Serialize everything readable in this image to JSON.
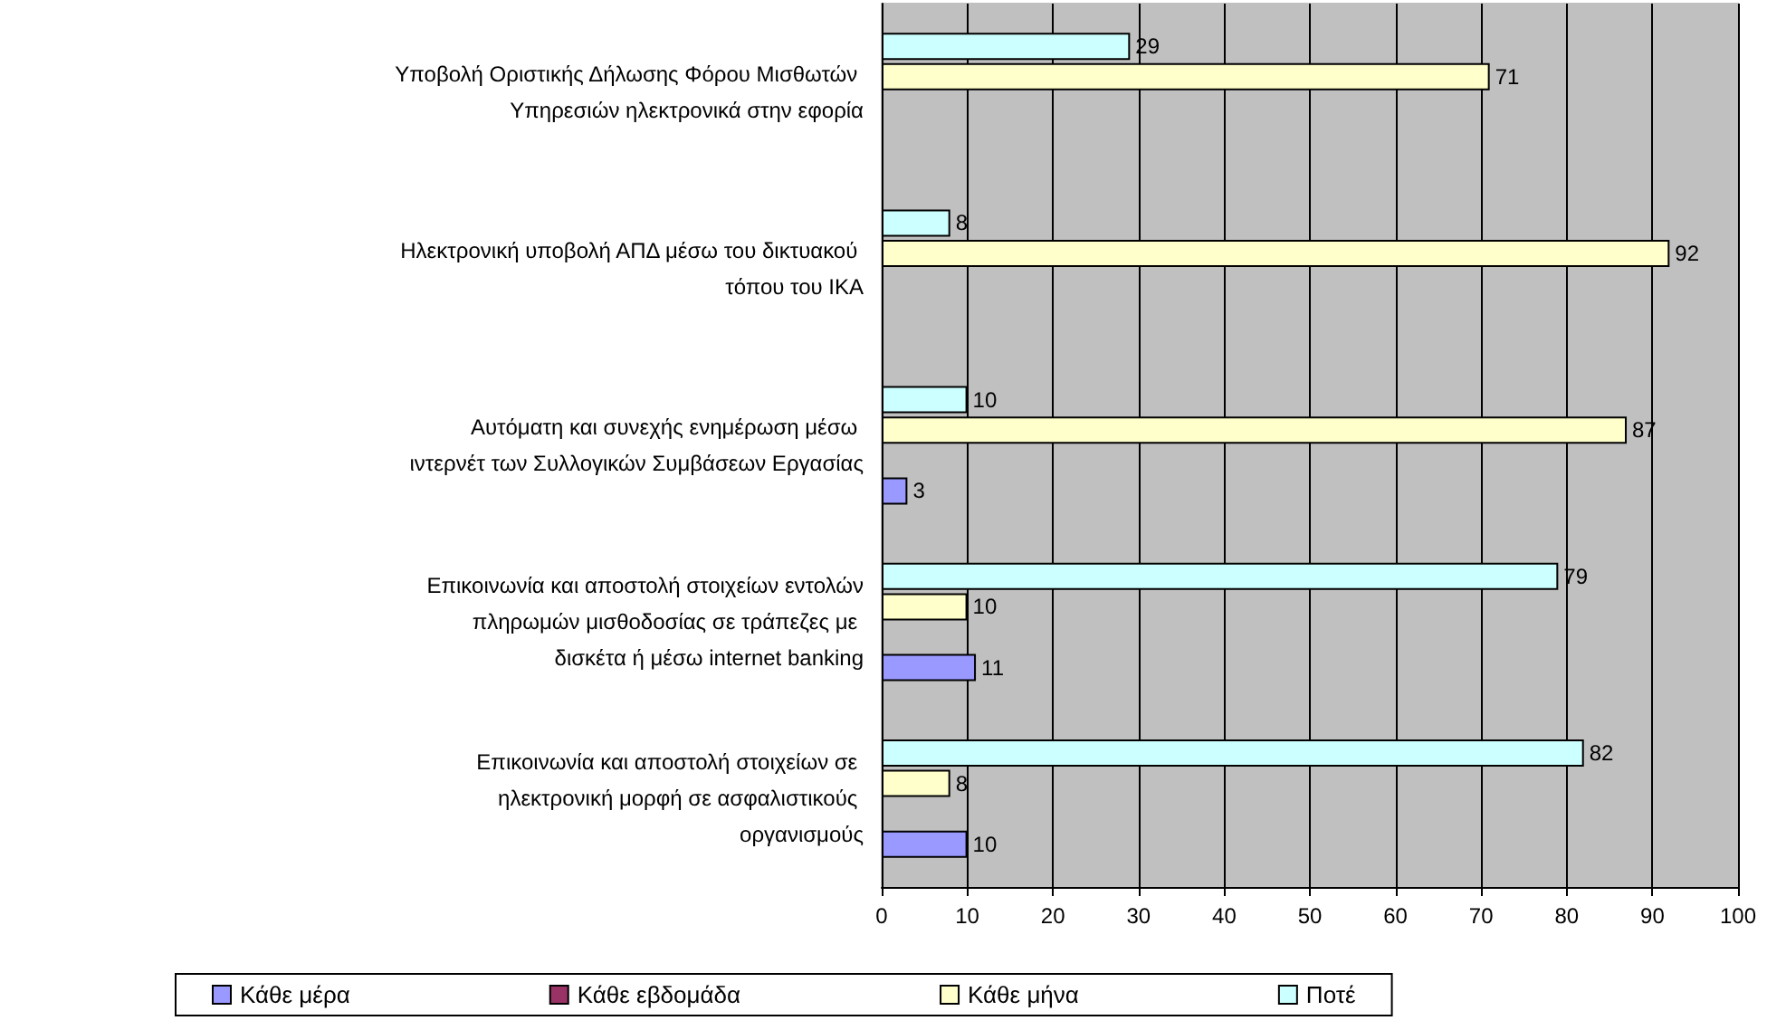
{
  "chart_data": {
    "type": "bar",
    "orientation": "horizontal",
    "categories": [
      "Υποβολή Οριστικής Δήλωσης Φόρου Μισθωτών Υπηρεσιών ηλεκτρονικά στην εφορία",
      "Ηλεκτρονική υποβολή ΑΠΔ μέσω του δικτυακού τόπου του ΙΚΑ",
      "Αυτόματη και συνεχής ενημέρωση μέσω ιντερνέτ των Συλλογικών Συμβάσεων Εργασίας",
      "Επικοινωνία και αποστολή στοιχείων εντολών πληρωμών μισθοδοσίας σε τράπεζες με δισκέτα ή μέσω internet banking",
      "Επικοινωνία και αποστολή στοιχείων σε ηλεκτρονική μορφή σε ασφαλιστικούς οργανισμούς"
    ],
    "series": [
      {
        "name": "Ποτέ",
        "color": "#ccffff",
        "values": [
          29,
          8,
          10,
          79,
          82
        ]
      },
      {
        "name": "Κάθε μήνα",
        "color": "#ffffcc",
        "values": [
          71,
          92,
          87,
          10,
          8
        ]
      },
      {
        "name": "Κάθε εβδομάδα",
        "color": "#993366",
        "values": [
          null,
          null,
          null,
          null,
          null
        ]
      },
      {
        "name": "Κάθε μέρα",
        "color": "#9999ff",
        "values": [
          null,
          null,
          3,
          11,
          10
        ]
      }
    ],
    "xlim": [
      0,
      100
    ],
    "xticks": [
      0,
      10,
      20,
      30,
      40,
      50,
      60,
      70,
      80,
      90,
      100
    ],
    "grid": "x",
    "legend": "bottom",
    "data_labels": true
  }
}
